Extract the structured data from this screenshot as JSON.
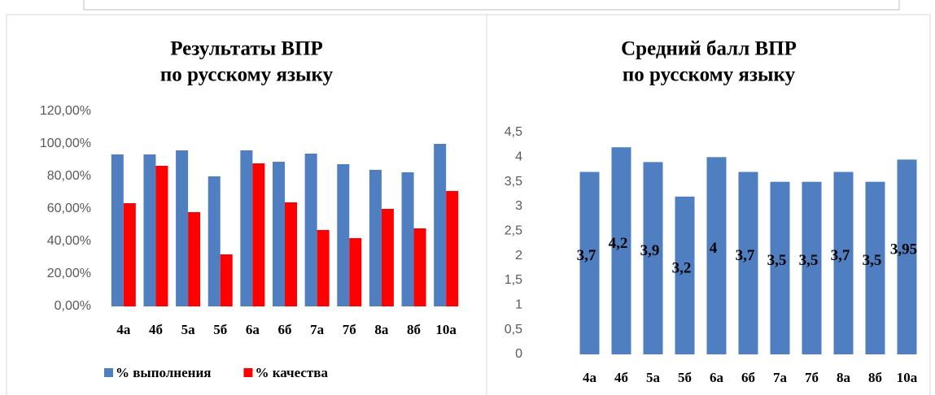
{
  "chart_data": [
    {
      "type": "bar",
      "title": "Результаты ВПР",
      "subtitle": "по русскому языку",
      "categories": [
        "4а",
        "4б",
        "5а",
        "5б",
        "6а",
        "6б",
        "7а",
        "7б",
        "8а",
        "8б",
        "10а"
      ],
      "series": [
        {
          "name": "% выполнения",
          "color": "#4f7fc0",
          "values": [
            93.5,
            93.5,
            96,
            80,
            96,
            89,
            94,
            87.5,
            84,
            82.5,
            100
          ]
        },
        {
          "name": "% качества",
          "color": "#ff0000",
          "values": [
            63.5,
            86.5,
            58,
            32,
            88,
            64,
            47,
            42,
            60,
            48,
            71
          ]
        }
      ],
      "ylim": [
        0,
        120
      ],
      "yticks": [
        {
          "value": 0,
          "label": "0,00%"
        },
        {
          "value": 20,
          "label": "20,00%"
        },
        {
          "value": 40,
          "label": "40,00%"
        },
        {
          "value": 60,
          "label": "60,00%"
        },
        {
          "value": 80,
          "label": "80,00%"
        },
        {
          "value": 100,
          "label": "100,00%"
        },
        {
          "value": 120,
          "label": "120,00%"
        }
      ],
      "legend": "bottom",
      "grid": false
    },
    {
      "type": "bar",
      "title": "Средний балл ВПР",
      "subtitle": "по русскому языку",
      "categories": [
        "4а",
        "4б",
        "5а",
        "5б",
        "6а",
        "6б",
        "7а",
        "7б",
        "8а",
        "8б",
        "10а"
      ],
      "values": [
        3.7,
        4.2,
        3.9,
        3.2,
        4,
        3.7,
        3.5,
        3.5,
        3.7,
        3.5,
        3.95
      ],
      "value_labels": [
        "3,7",
        "4,2",
        "3,9",
        "3,2",
        "4",
        "3,7",
        "3,5",
        "3,5",
        "3,7",
        "3,5",
        "3,95"
      ],
      "color": "#4f7fc0",
      "ylim": [
        0,
        4.5
      ],
      "yticks": [
        0,
        {
          "value": 0.5,
          "label": "0,5"
        },
        1,
        {
          "value": 1.5,
          "label": "1,5"
        },
        2,
        {
          "value": 2.5,
          "label": "2,5"
        },
        3,
        {
          "value": 3.5,
          "label": "3,5"
        },
        4,
        {
          "value": 4.5,
          "label": "4,5"
        }
      ],
      "grid": false
    }
  ]
}
